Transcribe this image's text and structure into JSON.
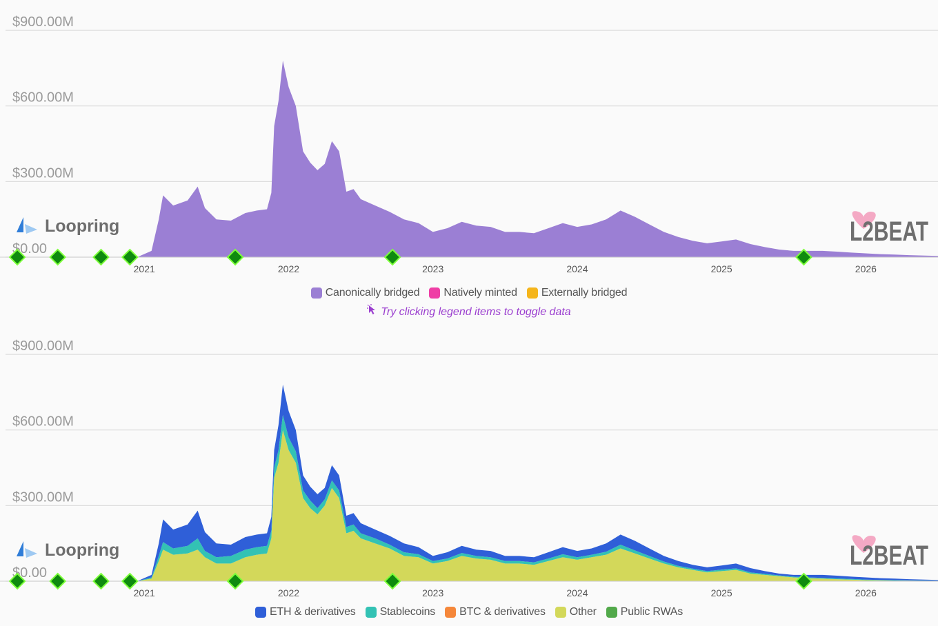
{
  "colors": {
    "canonically_bridged": "#9b7fd4",
    "natively_minted": "#ef3ea5",
    "externally_bridged": "#f5b51b",
    "eth": "#2f5fd8",
    "stablecoins": "#33c2b4",
    "btc": "#f5873a",
    "other": "#d3d85a",
    "public_rwas": "#52a94a",
    "milestone": "#0f8a0f",
    "grid": "#d9d9d9",
    "hint": "#9b3fcf"
  },
  "watermark": {
    "name": "Loopring",
    "brand": "L2BEAT"
  },
  "icons": {
    "loopring": "loopring-logo-icon",
    "brand": "l2beat-logo-icon",
    "hint": "pointer-icon"
  },
  "hint_text": "Try clicking legend items to toggle data",
  "chart_data": [
    {
      "type": "area",
      "stacked": true,
      "title": "",
      "xlabel": "",
      "ylabel": "",
      "ylim": [
        0,
        900
      ],
      "y_unit": "$M",
      "y_ticks": [
        "$0.00",
        "$300.00M",
        "$600.00M",
        "$900.00M"
      ],
      "y_tick_values": [
        0,
        300,
        600,
        900
      ],
      "xlim": [
        2020.0,
        2026.5
      ],
      "x_ticks": [
        "2021",
        "2022",
        "2023",
        "2024",
        "2025",
        "2026"
      ],
      "x_tick_values": [
        2021,
        2022,
        2023,
        2024,
        2025,
        2026
      ],
      "grid": true,
      "legend_position": "bottom-center",
      "legend": [
        "Canonically bridged",
        "Natively minted",
        "Externally bridged"
      ],
      "milestones_x": [
        2020.12,
        2020.4,
        2020.7,
        2020.9,
        2021.63,
        2022.72,
        2025.57
      ],
      "x": [
        2020.95,
        2021.05,
        2021.1,
        2021.13,
        2021.2,
        2021.3,
        2021.37,
        2021.42,
        2021.5,
        2021.6,
        2021.7,
        2021.78,
        2021.85,
        2021.88,
        2021.9,
        2021.93,
        2021.96,
        2022.0,
        2022.05,
        2022.1,
        2022.15,
        2022.2,
        2022.25,
        2022.3,
        2022.35,
        2022.4,
        2022.45,
        2022.5,
        2022.6,
        2022.7,
        2022.8,
        2022.9,
        2023.0,
        2023.1,
        2023.2,
        2023.3,
        2023.4,
        2023.5,
        2023.6,
        2023.7,
        2023.8,
        2023.9,
        2024.0,
        2024.1,
        2024.2,
        2024.3,
        2024.4,
        2024.5,
        2024.6,
        2024.7,
        2024.8,
        2024.9,
        2025.0,
        2025.1,
        2025.2,
        2025.3,
        2025.4,
        2025.5,
        2025.6,
        2025.7,
        2025.8,
        2025.9,
        2026.0,
        2026.1,
        2026.2,
        2026.3,
        2026.5
      ],
      "series": [
        {
          "name": "Canonically bridged",
          "values": [
            0,
            25,
            150,
            245,
            205,
            225,
            280,
            195,
            150,
            145,
            175,
            185,
            190,
            255,
            520,
            620,
            780,
            675,
            600,
            420,
            375,
            345,
            370,
            460,
            420,
            260,
            270,
            230,
            205,
            180,
            150,
            135,
            100,
            115,
            140,
            125,
            120,
            100,
            100,
            95,
            115,
            135,
            120,
            130,
            150,
            185,
            160,
            130,
            100,
            80,
            65,
            55,
            62,
            70,
            52,
            40,
            30,
            25,
            25,
            25,
            22,
            18,
            15,
            12,
            10,
            8,
            5
          ]
        },
        {
          "name": "Natively minted",
          "values": [
            0,
            0,
            0,
            0,
            0,
            0,
            0,
            0,
            0,
            0,
            0,
            0,
            0,
            0,
            0,
            0,
            0,
            0,
            0,
            0,
            0,
            0,
            0,
            0,
            0,
            0,
            0,
            0,
            0,
            0,
            0,
            0,
            0,
            0,
            0,
            0,
            0,
            0,
            0,
            0,
            0,
            0,
            0,
            0,
            0,
            0,
            0,
            0,
            0,
            0,
            0,
            0,
            0,
            0,
            0,
            0,
            0,
            0,
            0,
            0,
            0,
            0,
            0,
            0,
            0,
            0,
            0
          ]
        },
        {
          "name": "Externally bridged",
          "values": [
            0,
            0,
            0,
            0,
            0,
            0,
            0,
            0,
            0,
            0,
            0,
            0,
            0,
            0,
            0,
            0,
            0,
            0,
            0,
            0,
            0,
            0,
            0,
            0,
            0,
            0,
            0,
            0,
            0,
            0,
            0,
            0,
            0,
            0,
            0,
            0,
            0,
            0,
            0,
            0,
            0,
            0,
            0,
            0,
            0,
            0,
            0,
            0,
            0,
            0,
            0,
            0,
            0,
            0,
            0,
            0,
            0,
            0,
            0,
            0,
            0,
            0,
            0,
            0,
            0,
            0,
            0
          ]
        }
      ]
    },
    {
      "type": "area",
      "stacked": true,
      "title": "",
      "xlabel": "",
      "ylabel": "",
      "ylim": [
        0,
        900
      ],
      "y_unit": "$M",
      "y_ticks": [
        "$0.00",
        "$300.00M",
        "$600.00M",
        "$900.00M"
      ],
      "y_tick_values": [
        0,
        300,
        600,
        900
      ],
      "xlim": [
        2020.0,
        2026.5
      ],
      "x_ticks": [
        "2021",
        "2022",
        "2023",
        "2024",
        "2025",
        "2026"
      ],
      "x_tick_values": [
        2021,
        2022,
        2023,
        2024,
        2025,
        2026
      ],
      "grid": true,
      "legend_position": "bottom-center",
      "legend": [
        "ETH & derivatives",
        "Stablecoins",
        "BTC & derivatives",
        "Other",
        "Public RWAs"
      ],
      "milestones_x": [
        2020.12,
        2020.4,
        2020.7,
        2020.9,
        2021.63,
        2022.72,
        2025.57
      ],
      "x": [
        2020.95,
        2021.05,
        2021.1,
        2021.13,
        2021.2,
        2021.3,
        2021.37,
        2021.42,
        2021.5,
        2021.6,
        2021.7,
        2021.78,
        2021.85,
        2021.88,
        2021.9,
        2021.93,
        2021.96,
        2022.0,
        2022.05,
        2022.1,
        2022.15,
        2022.2,
        2022.25,
        2022.3,
        2022.35,
        2022.4,
        2022.45,
        2022.5,
        2022.6,
        2022.7,
        2022.8,
        2022.9,
        2023.0,
        2023.1,
        2023.2,
        2023.3,
        2023.4,
        2023.5,
        2023.6,
        2023.7,
        2023.8,
        2023.9,
        2024.0,
        2024.1,
        2024.2,
        2024.3,
        2024.4,
        2024.5,
        2024.6,
        2024.7,
        2024.8,
        2024.9,
        2025.0,
        2025.1,
        2025.2,
        2025.3,
        2025.4,
        2025.5,
        2025.6,
        2025.7,
        2025.8,
        2025.9,
        2026.0,
        2026.1,
        2026.2,
        2026.3,
        2026.5
      ],
      "series": [
        {
          "name": "Other",
          "values": [
            0,
            10,
            80,
            125,
            105,
            110,
            125,
            95,
            70,
            70,
            95,
            105,
            110,
            170,
            410,
            470,
            600,
            520,
            470,
            330,
            290,
            265,
            300,
            370,
            330,
            190,
            200,
            170,
            150,
            130,
            100,
            95,
            70,
            80,
            100,
            90,
            85,
            70,
            70,
            65,
            80,
            95,
            85,
            95,
            105,
            130,
            110,
            90,
            70,
            55,
            45,
            35,
            40,
            45,
            30,
            25,
            20,
            15,
            12,
            10,
            8,
            6,
            4,
            3,
            2,
            2,
            1
          ]
        },
        {
          "name": "Public RWAs",
          "values": [
            0,
            0,
            0,
            0,
            0,
            0,
            0,
            0,
            0,
            0,
            0,
            0,
            0,
            0,
            0,
            0,
            0,
            0,
            0,
            0,
            0,
            0,
            0,
            0,
            0,
            0,
            0,
            0,
            0,
            0,
            0,
            0,
            0,
            0,
            0,
            0,
            0,
            0,
            0,
            0,
            0,
            0,
            0,
            0,
            0,
            0,
            0,
            0,
            0,
            0,
            0,
            0,
            0,
            0,
            0,
            0,
            0,
            0,
            0,
            0,
            0,
            0,
            0,
            0,
            0,
            0,
            0
          ]
        },
        {
          "name": "BTC & derivatives",
          "values": [
            0,
            0,
            0,
            0,
            0,
            0,
            0,
            0,
            0,
            0,
            0,
            0,
            0,
            0,
            0,
            0,
            0,
            0,
            0,
            0,
            0,
            0,
            0,
            0,
            0,
            0,
            0,
            0,
            0,
            0,
            0,
            0,
            0,
            0,
            0,
            0,
            0,
            0,
            0,
            0,
            0,
            0,
            0,
            0,
            0,
            0,
            0,
            0,
            0,
            0,
            0,
            0,
            0,
            0,
            0,
            0,
            0,
            0,
            0,
            0,
            0,
            0,
            0,
            0,
            0,
            0,
            0
          ]
        },
        {
          "name": "Stablecoins",
          "values": [
            0,
            5,
            20,
            30,
            25,
            30,
            45,
            25,
            25,
            30,
            30,
            30,
            30,
            30,
            40,
            50,
            60,
            50,
            45,
            30,
            30,
            25,
            25,
            30,
            30,
            25,
            25,
            20,
            20,
            15,
            15,
            12,
            10,
            10,
            12,
            10,
            10,
            10,
            10,
            10,
            10,
            12,
            10,
            10,
            12,
            15,
            12,
            10,
            8,
            6,
            5,
            5,
            6,
            6,
            5,
            4,
            3,
            3,
            3,
            3,
            3,
            3,
            2,
            2,
            2,
            1,
            1
          ]
        },
        {
          "name": "ETH & derivatives",
          "values": [
            0,
            10,
            50,
            90,
            75,
            85,
            110,
            75,
            55,
            45,
            50,
            50,
            50,
            55,
            70,
            100,
            120,
            105,
            85,
            60,
            55,
            55,
            45,
            60,
            60,
            45,
            45,
            40,
            35,
            35,
            35,
            28,
            20,
            25,
            28,
            25,
            25,
            20,
            20,
            20,
            25,
            28,
            25,
            25,
            33,
            40,
            38,
            30,
            22,
            19,
            15,
            15,
            16,
            19,
            17,
            11,
            7,
            7,
            10,
            12,
            11,
            9,
            9,
            7,
            6,
            5,
            3
          ]
        }
      ]
    }
  ],
  "legend_top": [
    {
      "label": "Canonically bridged",
      "color": "#9b7fd4"
    },
    {
      "label": "Natively minted",
      "color": "#ef3ea5"
    },
    {
      "label": "Externally bridged",
      "color": "#f5b51b"
    }
  ],
  "legend_bottom": [
    {
      "label": "ETH & derivatives",
      "color": "#2f5fd8"
    },
    {
      "label": "Stablecoins",
      "color": "#33c2b4"
    },
    {
      "label": "BTC & derivatives",
      "color": "#f5873a"
    },
    {
      "label": "Other",
      "color": "#d3d85a"
    },
    {
      "label": "Public RWAs",
      "color": "#52a94a"
    }
  ]
}
